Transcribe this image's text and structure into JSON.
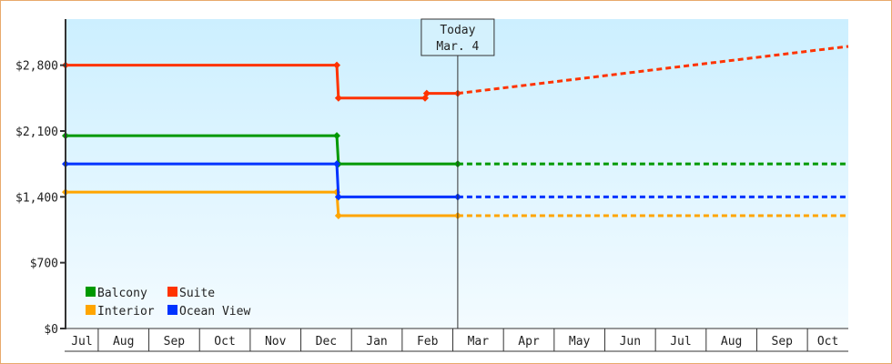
{
  "chart_data": {
    "type": "line",
    "title": "",
    "xlabel": "",
    "ylabel": "",
    "x_ticks": [
      "Jul",
      "Aug",
      "Sep",
      "Oct",
      "Nov",
      "Dec",
      "Jan",
      "Feb",
      "Mar",
      "Apr",
      "May",
      "Jun",
      "Jul",
      "Aug",
      "Sep",
      "Oct"
    ],
    "xlim": [
      "Jul 12",
      "Oct 26"
    ],
    "ylim": [
      0,
      3290
    ],
    "y_ticks": [
      0,
      700,
      1400,
      2100,
      2800
    ],
    "y_tick_labels": [
      "$0",
      "$700",
      "$1,400",
      "$2,100",
      "$2,800"
    ],
    "grid": false,
    "legend_position": "bottom-left",
    "today_marker": {
      "label": "Today",
      "date_label": "Mar. 4",
      "x": "Mar 4"
    },
    "series": [
      {
        "name": "Balcony",
        "color": "#009900",
        "points": [
          [
            "Jul 12",
            2050
          ],
          [
            "Dec 23",
            2050
          ],
          [
            "Dec 24",
            1750
          ],
          [
            "Mar 4",
            1750
          ]
        ],
        "forecast": [
          [
            "Mar 4",
            1750
          ],
          [
            "Oct 26",
            1750
          ]
        ]
      },
      {
        "name": "Suite",
        "color": "#ff3300",
        "points": [
          [
            "Jul 12",
            2800
          ],
          [
            "Dec 23",
            2800
          ],
          [
            "Dec 24",
            2450
          ],
          [
            "Feb 15",
            2450
          ],
          [
            "Feb 16",
            2500
          ],
          [
            "Mar 4",
            2500
          ]
        ],
        "forecast": [
          [
            "Mar 4",
            2500
          ],
          [
            "Oct 26",
            3000
          ]
        ]
      },
      {
        "name": "Interior",
        "color": "#ffa500",
        "points": [
          [
            "Jul 12",
            1450
          ],
          [
            "Dec 23",
            1450
          ],
          [
            "Dec 24",
            1200
          ],
          [
            "Mar 4",
            1200
          ]
        ],
        "forecast": [
          [
            "Mar 4",
            1200
          ],
          [
            "Oct 26",
            1200
          ]
        ]
      },
      {
        "name": "Ocean View",
        "color": "#0033ff",
        "points": [
          [
            "Jul 12",
            1750
          ],
          [
            "Dec 23",
            1750
          ],
          [
            "Dec 24",
            1400
          ],
          [
            "Mar 4",
            1400
          ]
        ],
        "forecast": [
          [
            "Mar 4",
            1400
          ],
          [
            "Oct 26",
            1400
          ]
        ]
      }
    ]
  }
}
